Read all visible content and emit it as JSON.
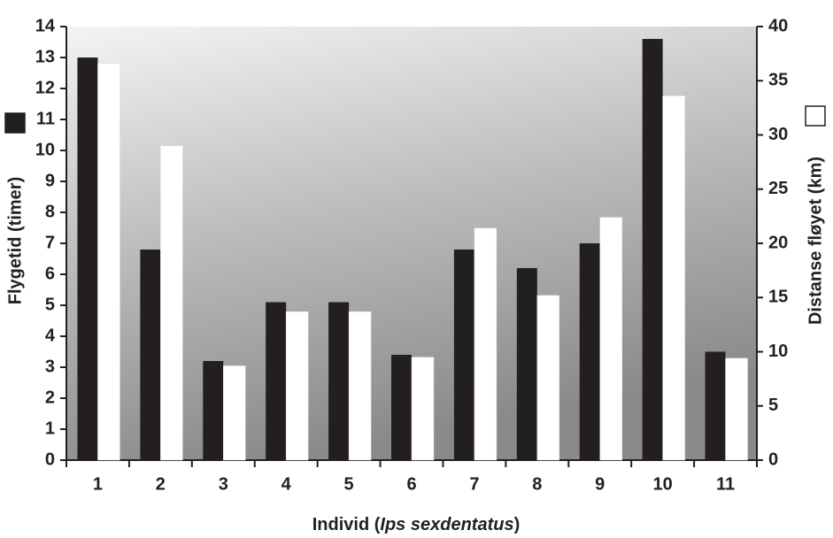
{
  "chart_data": {
    "type": "bar",
    "ylabel": "Flygetid (timer)",
    "y2label": "Distanse fløyet (km)",
    "x_label": [
      "Individ (",
      "Ips sexdentatus",
      ")"
    ],
    "categories": [
      "1",
      "2",
      "3",
      "4",
      "5",
      "6",
      "7",
      "8",
      "9",
      "10",
      "11"
    ],
    "series": [
      {
        "color": "#231f20",
        "values": [
          13.0,
          6.8,
          3.2,
          5.1,
          5.1,
          3.4,
          6.8,
          6.2,
          7.0,
          13.6,
          3.5
        ]
      },
      {
        "color": "#ffffff",
        "axis": "y2",
        "values": [
          36.6,
          29.0,
          8.7,
          13.7,
          13.7,
          9.5,
          21.4,
          15.2,
          22.4,
          33.6,
          9.4
        ]
      }
    ],
    "ylim": [
      0,
      14
    ],
    "yticks": [
      0,
      1,
      2,
      3,
      4,
      5,
      6,
      7,
      8,
      9,
      10,
      11,
      12,
      13,
      14
    ],
    "y2lim": [
      0,
      40
    ],
    "y2ticks": [
      0,
      5,
      10,
      15,
      20,
      25,
      30,
      35,
      40
    ]
  }
}
